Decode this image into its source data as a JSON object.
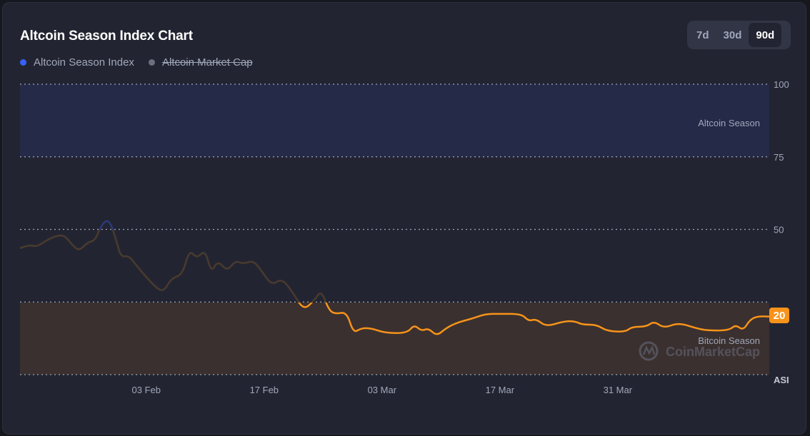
{
  "header": {
    "title": "Altcoin Season Index Chart"
  },
  "legend": [
    {
      "label": "Altcoin Season Index",
      "color": "#3861fb",
      "active": true
    },
    {
      "label": "Altcoin Market Cap",
      "color": "#6b6f80",
      "active": false
    }
  ],
  "range": {
    "options": [
      "7d",
      "30d",
      "90d"
    ],
    "selected": "90d"
  },
  "zones": {
    "altcoin": "Altcoin Season",
    "bitcoin": "Bitcoin Season"
  },
  "watermark": "CoinMarketCap",
  "current_value": "20",
  "colors": {
    "orange": "#f7931a",
    "blue": "#2c3a78",
    "mid": "#4a3a2e",
    "altcoin_band": "#252a48",
    "bitcoin_band": "#3a302f"
  },
  "chart_data": {
    "type": "line",
    "title": "Altcoin Season Index Chart",
    "ylabel": "ASI",
    "ylim": [
      0,
      100
    ],
    "yticks": [
      100,
      75,
      50
    ],
    "xlim": [
      0,
      89
    ],
    "xticks": [
      {
        "label": "03 Feb",
        "day": 15
      },
      {
        "label": "17 Feb",
        "day": 29
      },
      {
        "label": "03 Mar",
        "day": 43
      },
      {
        "label": "17 Mar",
        "day": 57
      },
      {
        "label": "31 Mar",
        "day": 71
      }
    ],
    "thresholds": {
      "altcoin_season": 75,
      "bitcoin_season": 25
    },
    "series": [
      {
        "name": "Altcoin Season Index",
        "x": [
          0,
          1,
          2,
          3.1,
          4.4,
          5.3,
          6.1,
          7,
          8,
          8.9,
          9.5,
          10.2,
          10.8,
          11.5,
          12,
          12.9,
          13.7,
          14.6,
          15.9,
          17,
          18,
          19.3,
          20.1,
          21,
          22,
          22.7,
          23.5,
          24.6,
          25.6,
          26.5,
          27.7,
          28.6,
          29.9,
          31.1,
          32.4,
          33.7,
          35,
          35.8,
          36.7,
          37.5,
          38.8,
          39.6,
          40.5,
          41.7,
          43.4,
          46,
          46.8,
          47.7,
          48.5,
          49.5,
          50.6,
          51.9,
          53.6,
          55.3,
          57,
          59.6,
          60.4,
          61.3,
          62.5,
          64.6,
          65.9,
          66.8,
          68.5,
          69.7,
          71.9,
          72.7,
          74.4,
          75.3,
          76.5,
          78.2,
          80.3,
          81.6,
          84.2,
          85,
          85.9,
          86.7,
          87.6,
          89
        ],
        "y": [
          43.5,
          44.7,
          44,
          46.2,
          47.9,
          47.9,
          45,
          42.5,
          45.5,
          46.2,
          50.4,
          53.3,
          52.1,
          45.5,
          40.5,
          41,
          38.1,
          34.9,
          30.7,
          28.3,
          33.2,
          34.4,
          43,
          40,
          43,
          35.1,
          39.3,
          35.6,
          39.3,
          38.1,
          39.3,
          36.1,
          30.7,
          33.2,
          28.3,
          22.1,
          25.8,
          29,
          22.1,
          20.9,
          21.6,
          14.3,
          16,
          16,
          14.3,
          14.3,
          17.2,
          15,
          16,
          13.3,
          16,
          17.9,
          19.2,
          20.9,
          20.9,
          20.9,
          18.4,
          19.2,
          16.5,
          18.4,
          18.4,
          17.2,
          17.2,
          15,
          14.7,
          16.5,
          16.5,
          18.4,
          16,
          17.9,
          16,
          15.2,
          15.2,
          17.2,
          15.2,
          18.9,
          20.1,
          20
        ]
      }
    ]
  }
}
